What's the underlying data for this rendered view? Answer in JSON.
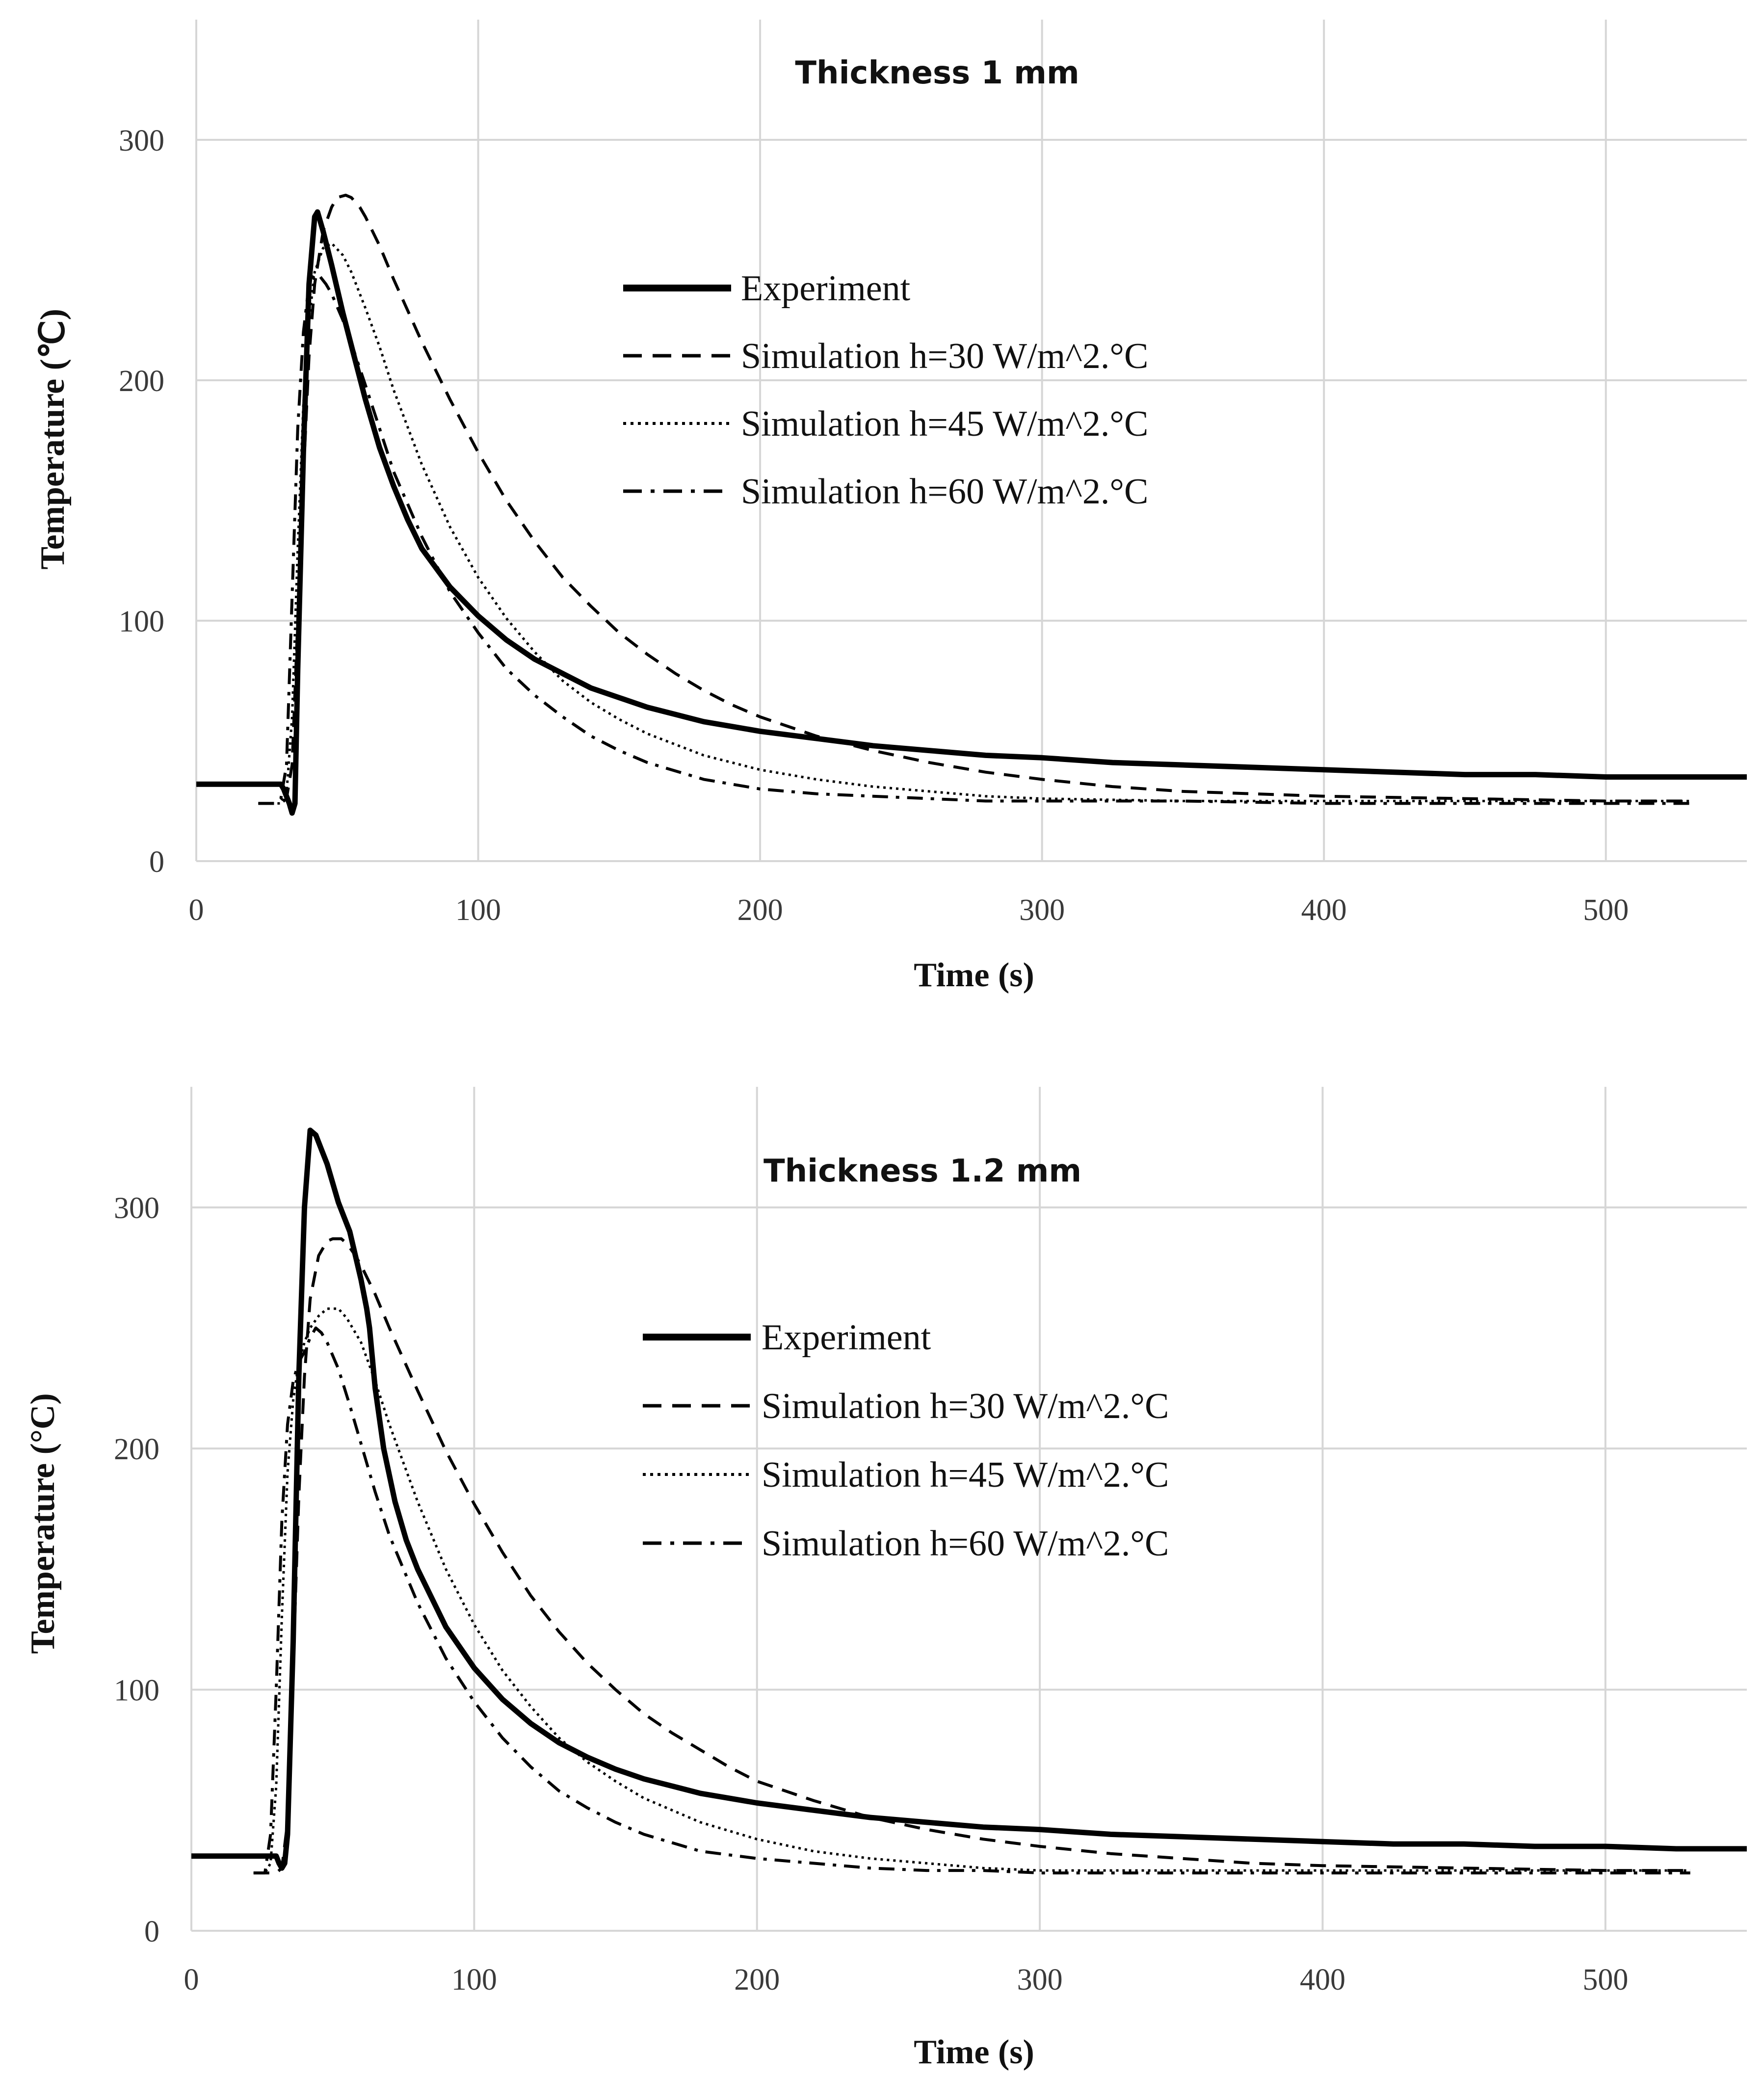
{
  "chart_data": [
    {
      "type": "line",
      "title": "Thickness 1 mm",
      "xlabel": "Time (s)",
      "ylabel": "Temperature (℃)",
      "xlim": [
        0,
        550
      ],
      "ylim": [
        0,
        350
      ],
      "xticks": [
        0,
        100,
        200,
        300,
        400,
        500
      ],
      "yticks": [
        0,
        100,
        200,
        300
      ],
      "grid": true,
      "legend_position": "center-right",
      "series": [
        {
          "name": "Experiment",
          "style": "solid-thick",
          "x": [
            0,
            30,
            31,
            33,
            34,
            35,
            36,
            38,
            40,
            42,
            43,
            45,
            48,
            52,
            56,
            60,
            65,
            70,
            75,
            80,
            90,
            100,
            110,
            120,
            130,
            140,
            150,
            160,
            170,
            180,
            190,
            200,
            220,
            240,
            260,
            280,
            300,
            325,
            350,
            375,
            400,
            425,
            450,
            475,
            500,
            525,
            550
          ],
          "y": [
            32,
            32,
            30,
            24,
            20,
            24,
            80,
            170,
            240,
            268,
            270,
            262,
            248,
            228,
            210,
            192,
            172,
            156,
            142,
            130,
            114,
            102,
            92,
            84,
            78,
            72,
            68,
            64,
            61,
            58,
            56,
            54,
            51,
            48,
            46,
            44,
            43,
            41,
            40,
            39,
            38,
            37,
            36,
            36,
            35,
            35,
            35
          ]
        },
        {
          "name": "Simulation h=30 W/m^2.°C",
          "style": "dashed",
          "x": [
            22,
            30,
            32,
            34,
            36,
            38,
            40,
            42,
            45,
            48,
            50,
            53,
            55,
            58,
            60,
            65,
            70,
            80,
            90,
            100,
            110,
            120,
            130,
            140,
            150,
            160,
            170,
            180,
            190,
            200,
            220,
            240,
            260,
            280,
            300,
            325,
            350,
            375,
            400,
            450,
            500,
            530
          ],
          "y": [
            24,
            24,
            26,
            40,
            100,
            160,
            210,
            240,
            262,
            272,
            276,
            277,
            276,
            272,
            268,
            256,
            242,
            216,
            192,
            170,
            150,
            133,
            118,
            106,
            95,
            86,
            78,
            71,
            65,
            60,
            52,
            46,
            41,
            37,
            34,
            31,
            29,
            28,
            27,
            26,
            25,
            25
          ]
        },
        {
          "name": "Simulation h=45 W/m^2.°C",
          "style": "dotted",
          "x": [
            22,
            30,
            32,
            34,
            36,
            38,
            40,
            42,
            45,
            48,
            52,
            55,
            60,
            65,
            70,
            80,
            90,
            100,
            110,
            120,
            130,
            140,
            150,
            160,
            180,
            200,
            220,
            240,
            260,
            280,
            300,
            350,
            400,
            450,
            500,
            530
          ],
          "y": [
            24,
            24,
            28,
            60,
            130,
            190,
            225,
            245,
            255,
            257,
            252,
            245,
            230,
            214,
            196,
            165,
            139,
            118,
            101,
            87,
            75,
            66,
            59,
            53,
            44,
            38,
            34,
            31,
            29,
            27,
            26,
            25,
            25,
            25,
            25,
            25
          ]
        },
        {
          "name": "Simulation h=60 W/m^2.°C",
          "style": "dash-dot",
          "x": [
            22,
            28,
            30,
            32,
            34,
            36,
            38,
            40,
            42,
            44,
            46,
            48,
            52,
            56,
            60,
            65,
            70,
            80,
            90,
            100,
            110,
            120,
            130,
            140,
            150,
            160,
            180,
            200,
            220,
            240,
            260,
            280,
            300,
            350,
            400,
            450,
            500,
            530
          ],
          "y": [
            24,
            24,
            26,
            40,
            110,
            180,
            220,
            240,
            244,
            243,
            240,
            236,
            225,
            212,
            198,
            180,
            162,
            135,
            112,
            95,
            80,
            69,
            60,
            52,
            46,
            41,
            34,
            30,
            28,
            27,
            26,
            25,
            25,
            25,
            24,
            24,
            24,
            24
          ]
        }
      ]
    },
    {
      "type": "line",
      "title": "Thickness 1.2 mm",
      "xlabel": "Time (s)",
      "ylabel": "Temperature (°C)",
      "xlim": [
        0,
        550
      ],
      "ylim": [
        0,
        350
      ],
      "xticks": [
        0,
        100,
        200,
        300,
        400,
        500
      ],
      "yticks": [
        0,
        100,
        200,
        300
      ],
      "grid": true,
      "legend_position": "center-right",
      "series": [
        {
          "name": "Experiment",
          "style": "solid-thick",
          "x": [
            0,
            30,
            31,
            32,
            33,
            34,
            36,
            38,
            40,
            42,
            44,
            46,
            48,
            50,
            52,
            54,
            56,
            58,
            60,
            62,
            63,
            65,
            68,
            72,
            76,
            80,
            90,
            100,
            110,
            120,
            130,
            140,
            150,
            160,
            170,
            180,
            190,
            200,
            220,
            240,
            260,
            280,
            300,
            325,
            350,
            375,
            400,
            425,
            450,
            475,
            500,
            525,
            550
          ],
          "y": [
            31,
            31,
            28,
            26,
            28,
            40,
            120,
            230,
            300,
            332,
            330,
            324,
            318,
            310,
            302,
            296,
            290,
            280,
            270,
            258,
            250,
            225,
            200,
            178,
            162,
            150,
            126,
            109,
            96,
            86,
            78,
            72,
            67,
            63,
            60,
            57,
            55,
            53,
            50,
            47,
            45,
            43,
            42,
            40,
            39,
            38,
            37,
            36,
            36,
            35,
            35,
            34,
            34
          ]
        },
        {
          "name": "Simulation h=30 W/m^2.°C",
          "style": "dashed",
          "x": [
            22,
            30,
            32,
            34,
            36,
            38,
            40,
            42,
            45,
            48,
            50,
            53,
            55,
            58,
            60,
            65,
            70,
            80,
            90,
            100,
            110,
            120,
            130,
            140,
            150,
            160,
            170,
            180,
            190,
            200,
            220,
            240,
            260,
            280,
            300,
            325,
            350,
            375,
            400,
            450,
            500,
            530
          ],
          "y": [
            24,
            24,
            26,
            45,
            110,
            180,
            230,
            262,
            280,
            286,
            287,
            287,
            285,
            280,
            276,
            264,
            250,
            224,
            199,
            177,
            157,
            139,
            124,
            111,
            100,
            90,
            82,
            75,
            68,
            62,
            54,
            47,
            42,
            38,
            35,
            32,
            30,
            28,
            27,
            26,
            25,
            25
          ]
        },
        {
          "name": "Simulation h=45 W/m^2.°C",
          "style": "dotted",
          "x": [
            22,
            26,
            28,
            30,
            32,
            34,
            36,
            38,
            40,
            42,
            45,
            48,
            52,
            55,
            60,
            65,
            70,
            80,
            90,
            100,
            110,
            120,
            130,
            140,
            150,
            160,
            180,
            200,
            220,
            240,
            260,
            280,
            300,
            350,
            400,
            450,
            500,
            530
          ],
          "y": [
            24,
            24,
            28,
            60,
            130,
            190,
            220,
            236,
            244,
            250,
            255,
            258,
            258,
            254,
            244,
            228,
            210,
            178,
            150,
            127,
            108,
            93,
            80,
            70,
            62,
            55,
            45,
            38,
            33,
            30,
            28,
            26,
            25,
            25,
            25,
            25,
            25,
            25
          ]
        },
        {
          "name": "Simulation h=60 W/m^2.°C",
          "style": "dash-dot",
          "x": [
            22,
            26,
            28,
            30,
            32,
            34,
            36,
            38,
            40,
            42,
            44,
            46,
            48,
            52,
            56,
            60,
            65,
            70,
            80,
            90,
            100,
            110,
            120,
            130,
            140,
            150,
            160,
            180,
            200,
            220,
            240,
            260,
            280,
            300,
            350,
            400,
            450,
            500,
            530
          ],
          "y": [
            24,
            24,
            40,
            100,
            170,
            210,
            228,
            236,
            240,
            246,
            250,
            248,
            244,
            233,
            218,
            202,
            182,
            164,
            136,
            113,
            95,
            80,
            68,
            58,
            51,
            45,
            40,
            33,
            30,
            28,
            26,
            25,
            25,
            24,
            24,
            24,
            24,
            24,
            24
          ]
        }
      ]
    }
  ]
}
